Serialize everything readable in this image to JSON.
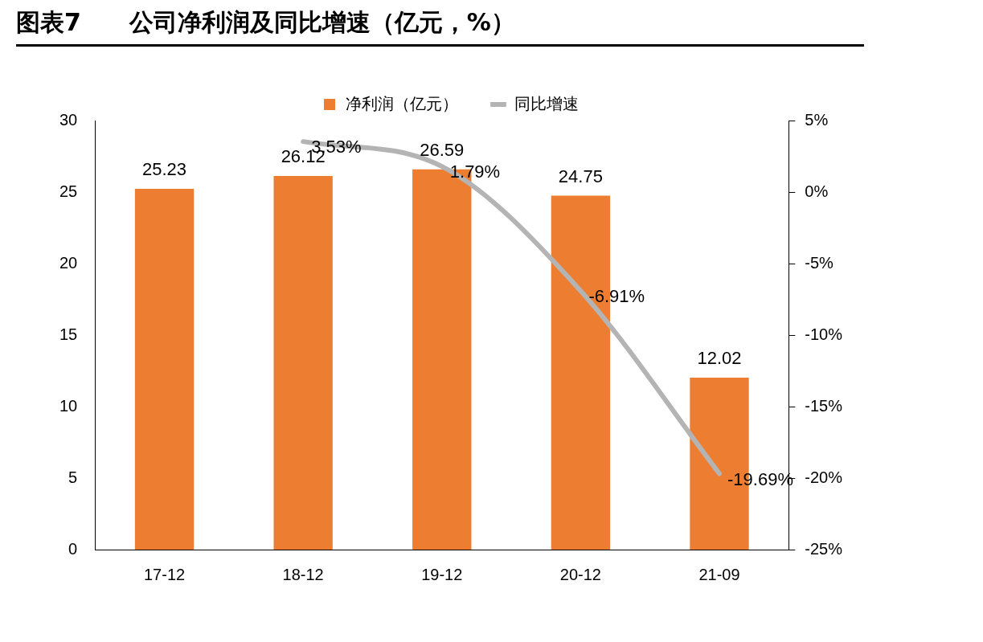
{
  "chart_data": {
    "type": "bar",
    "title": "图表7　　公司净利润及同比增速（亿元，%）",
    "categories": [
      "17-12",
      "18-12",
      "19-12",
      "20-12",
      "21-09"
    ],
    "series": [
      {
        "name": "净利润（亿元）",
        "color": "#ed7d31",
        "values": [
          25.23,
          26.12,
          26.59,
          24.75,
          12.02
        ],
        "value_labels": [
          "25.23",
          "26.12",
          "26.59",
          "24.75",
          "12.02"
        ]
      },
      {
        "name": "同比增速",
        "type": "line",
        "axis": "y2",
        "color": "#b4b4b4",
        "values": [
          null,
          3.53,
          1.79,
          -6.91,
          -19.69
        ],
        "value_labels": [
          null,
          "3.53%",
          "1.79%",
          "-6.91%",
          "-19.69%"
        ]
      }
    ],
    "ylim": [
      0,
      30
    ],
    "yticks": [
      0,
      5,
      10,
      15,
      20,
      25,
      30
    ],
    "y2lim": [
      -25,
      5
    ],
    "y2ticks": [
      {
        "value": -25,
        "label": "-25%"
      },
      {
        "value": -20,
        "label": "-20%"
      },
      {
        "value": -15,
        "label": "-15%"
      },
      {
        "value": -10,
        "label": "-10%"
      },
      {
        "value": -5,
        "label": "-5%"
      },
      {
        "value": 0,
        "label": "0%"
      },
      {
        "value": 5,
        "label": "5%"
      }
    ],
    "grid": false,
    "legend": "top",
    "marker": "none",
    "line_style": "solid"
  }
}
